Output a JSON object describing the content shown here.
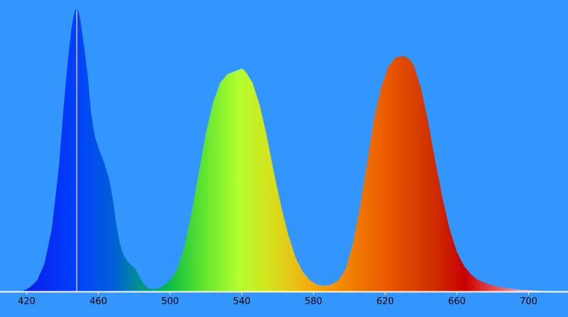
{
  "background_color": "#3396ff",
  "axis_color": "#ffffff",
  "marker_line_color": "#c8c8ff",
  "chart_data": {
    "type": "area",
    "title": "",
    "xlabel": "",
    "ylabel": "",
    "xlim": [
      413,
      717
    ],
    "ylim": [
      0,
      1
    ],
    "grid": false,
    "x_ticks": [
      420,
      460,
      500,
      540,
      580,
      620,
      660,
      700
    ],
    "x_tick_labels": [
      "420",
      "460",
      "500",
      "540",
      "580",
      "620",
      "660",
      "700"
    ],
    "fill": "wavelength-spectrum-gradient",
    "marker_line_x": 448,
    "series": [
      {
        "x": [
          413,
          418,
          422,
          426,
          430,
          434,
          438,
          441,
          443,
          445,
          446,
          447,
          448,
          449,
          450,
          452,
          454,
          456,
          458,
          460,
          463,
          466,
          468,
          470,
          472,
          474,
          476,
          478,
          480,
          482,
          484,
          486,
          488,
          490,
          493,
          496,
          500,
          504,
          508,
          512,
          516,
          520,
          524,
          528,
          532,
          536,
          538,
          540,
          542,
          546,
          550,
          554,
          558,
          562,
          566,
          570,
          574,
          578,
          582,
          586,
          590,
          594,
          598,
          602,
          606,
          610,
          614,
          618,
          622,
          626,
          630,
          632,
          634,
          636,
          640,
          644,
          648,
          652,
          656,
          660,
          664,
          668,
          672,
          676,
          680,
          684,
          688,
          692,
          696,
          700,
          704,
          708,
          712,
          717
        ],
        "y": [
          0.0,
          0.002,
          0.015,
          0.04,
          0.1,
          0.22,
          0.44,
          0.68,
          0.82,
          0.93,
          0.97,
          0.995,
          1.0,
          0.99,
          0.96,
          0.87,
          0.77,
          0.63,
          0.55,
          0.51,
          0.46,
          0.4,
          0.33,
          0.24,
          0.17,
          0.13,
          0.11,
          0.095,
          0.085,
          0.065,
          0.04,
          0.022,
          0.012,
          0.008,
          0.01,
          0.018,
          0.04,
          0.08,
          0.16,
          0.28,
          0.42,
          0.56,
          0.67,
          0.74,
          0.77,
          0.78,
          0.785,
          0.79,
          0.78,
          0.74,
          0.66,
          0.55,
          0.42,
          0.3,
          0.2,
          0.12,
          0.07,
          0.04,
          0.025,
          0.02,
          0.025,
          0.04,
          0.08,
          0.17,
          0.3,
          0.46,
          0.62,
          0.73,
          0.8,
          0.83,
          0.835,
          0.83,
          0.82,
          0.8,
          0.72,
          0.6,
          0.46,
          0.33,
          0.22,
          0.14,
          0.09,
          0.06,
          0.04,
          0.03,
          0.022,
          0.016,
          0.012,
          0.008,
          0.006,
          0.004,
          0.003,
          0.002,
          0.0015,
          0.0
        ]
      }
    ]
  }
}
